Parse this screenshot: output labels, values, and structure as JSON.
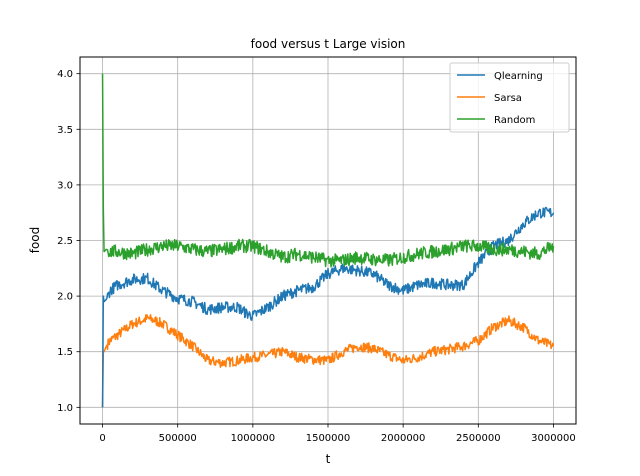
{
  "chart_data": {
    "type": "line",
    "title": "food versus t Large vision",
    "xlabel": "t",
    "ylabel": "food",
    "xlim": [
      -150000,
      3150000
    ],
    "ylim": [
      0.85,
      4.15
    ],
    "xticks": [
      0,
      500000,
      1000000,
      1500000,
      2000000,
      2500000,
      3000000
    ],
    "xtick_labels": [
      "0",
      "500000",
      "1000000",
      "1500000",
      "2000000",
      "2500000",
      "3000000"
    ],
    "yticks": [
      1.0,
      1.5,
      2.0,
      2.5,
      3.0,
      3.5,
      4.0
    ],
    "ytick_labels": [
      "1.0",
      "1.5",
      "2.0",
      "2.5",
      "3.0",
      "3.5",
      "4.0"
    ],
    "grid": true,
    "legend_position": "top-right",
    "series": [
      {
        "name": "Qlearning",
        "color": "#1f77b4",
        "noise": 0.05,
        "x": [
          0,
          5000,
          10000,
          25000,
          50000,
          100000,
          200000,
          300000,
          350000,
          400000,
          500000,
          600000,
          700000,
          800000,
          900000,
          950000,
          1000000,
          1100000,
          1200000,
          1300000,
          1400000,
          1500000,
          1600000,
          1700000,
          1800000,
          1900000,
          2000000,
          2100000,
          2200000,
          2300000,
          2400000,
          2500000,
          2600000,
          2700000,
          2800000,
          2900000,
          3000000
        ],
        "y": [
          1.0,
          2.0,
          1.95,
          1.97,
          2.05,
          2.1,
          2.15,
          2.16,
          2.1,
          2.05,
          1.98,
          1.95,
          1.88,
          1.9,
          1.9,
          1.85,
          1.82,
          1.9,
          2.0,
          2.05,
          2.08,
          2.2,
          2.25,
          2.23,
          2.2,
          2.1,
          2.05,
          2.1,
          2.12,
          2.1,
          2.1,
          2.3,
          2.45,
          2.5,
          2.65,
          2.75,
          2.75
        ]
      },
      {
        "name": "Sarsa",
        "color": "#ff7f0e",
        "noise": 0.045,
        "x": [
          0,
          5000,
          10000,
          25000,
          50000,
          100000,
          200000,
          300000,
          350000,
          400000,
          500000,
          600000,
          700000,
          800000,
          900000,
          1000000,
          1100000,
          1200000,
          1300000,
          1400000,
          1500000,
          1600000,
          1700000,
          1800000,
          1900000,
          2000000,
          2100000,
          2200000,
          2300000,
          2400000,
          2500000,
          2600000,
          2700000,
          2800000,
          2900000,
          3000000
        ],
        "y": [
          1.0,
          1.5,
          1.5,
          1.55,
          1.6,
          1.65,
          1.75,
          1.8,
          1.78,
          1.75,
          1.65,
          1.55,
          1.42,
          1.4,
          1.42,
          1.45,
          1.47,
          1.5,
          1.45,
          1.43,
          1.42,
          1.5,
          1.55,
          1.53,
          1.47,
          1.42,
          1.45,
          1.5,
          1.52,
          1.55,
          1.6,
          1.72,
          1.78,
          1.72,
          1.6,
          1.55
        ]
      },
      {
        "name": "Random",
        "color": "#2ca02c",
        "noise": 0.06,
        "x": [
          0,
          5000,
          10000,
          25000,
          50000,
          100000,
          200000,
          300000,
          400000,
          500000,
          600000,
          700000,
          800000,
          900000,
          1000000,
          1100000,
          1200000,
          1300000,
          1400000,
          1500000,
          1600000,
          1700000,
          1800000,
          1900000,
          2000000,
          2100000,
          2200000,
          2300000,
          2400000,
          2500000,
          2600000,
          2700000,
          2800000,
          2900000,
          3000000
        ],
        "y": [
          4.0,
          2.8,
          2.4,
          2.42,
          2.4,
          2.4,
          2.38,
          2.42,
          2.45,
          2.45,
          2.42,
          2.4,
          2.42,
          2.45,
          2.45,
          2.4,
          2.35,
          2.38,
          2.35,
          2.32,
          2.32,
          2.35,
          2.33,
          2.32,
          2.35,
          2.38,
          2.4,
          2.42,
          2.45,
          2.45,
          2.42,
          2.42,
          2.4,
          2.38,
          2.45
        ]
      }
    ]
  }
}
